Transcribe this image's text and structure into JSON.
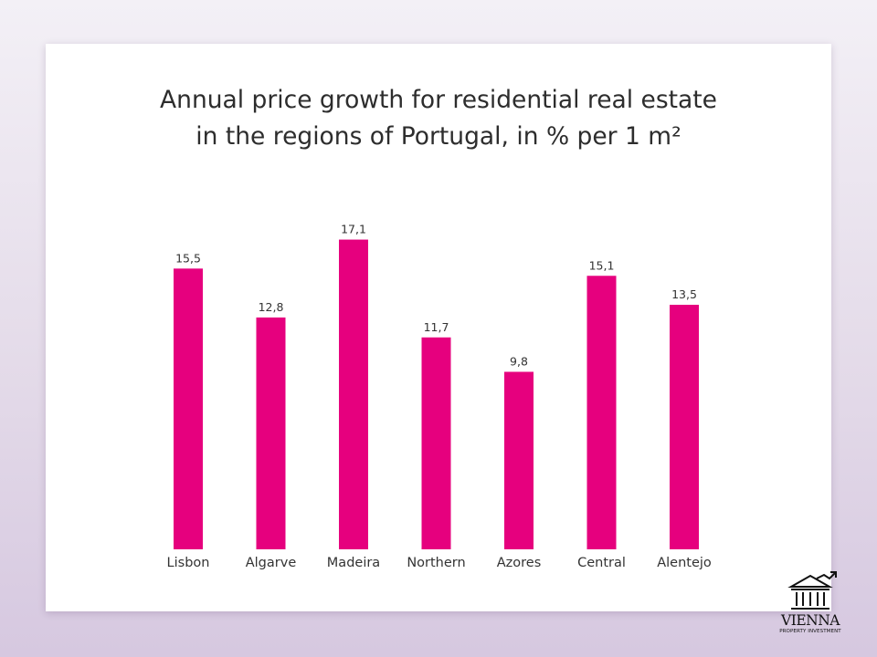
{
  "chart_data": {
    "type": "bar",
    "title_lines": [
      "Annual price growth for residential real estate",
      "in the regions of Portugal, in % per 1 m²"
    ],
    "categories": [
      "Lisbon",
      "Algarve",
      "Madeira",
      "Northern",
      "Azores",
      "Central",
      "Alentejo"
    ],
    "values": [
      15.5,
      12.8,
      17.1,
      11.7,
      9.8,
      15.1,
      13.5
    ],
    "value_labels": [
      "15,5",
      "12,8",
      "17,1",
      "11,7",
      "9,8",
      "15,1",
      "13,5"
    ],
    "bar_color": "#e6007e",
    "xlabel": "",
    "ylabel": "",
    "grid": false,
    "legend": "none"
  },
  "logo": {
    "icon": "building-columns-icon",
    "arrow_icon": "trend-arrow-icon",
    "name": "VIENNA",
    "tagline": "PROPERTY INVESTMENT"
  }
}
